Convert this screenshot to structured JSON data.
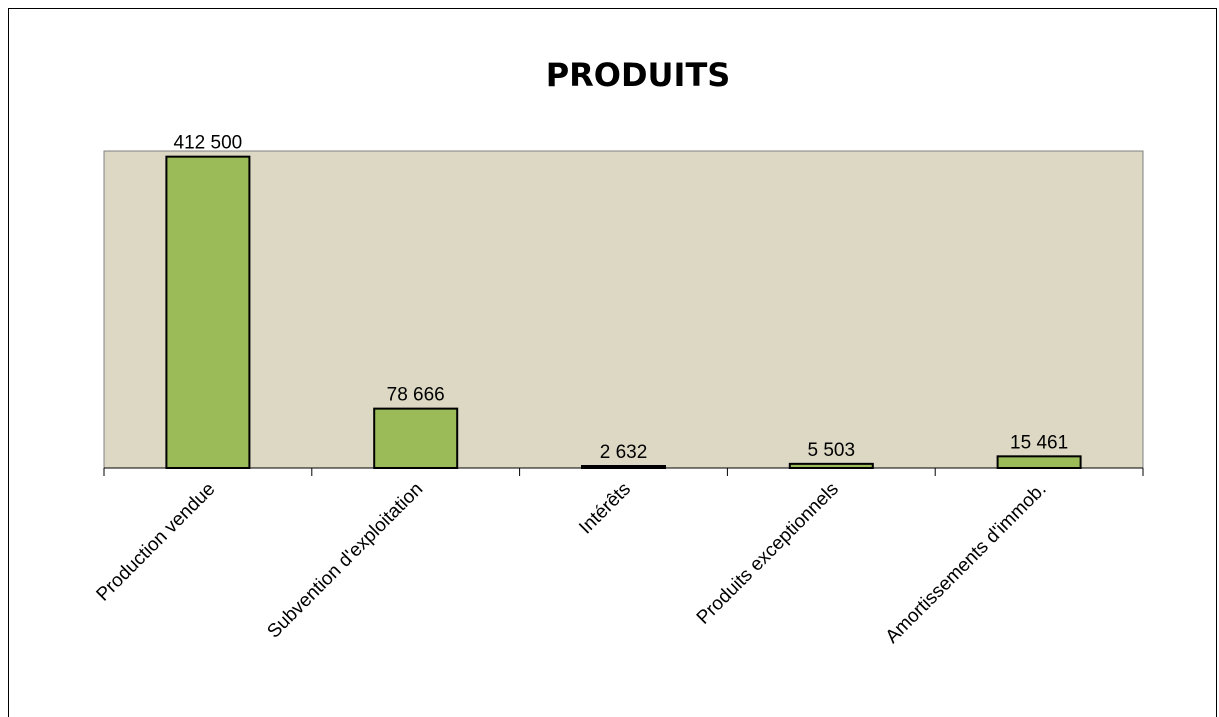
{
  "chart_data": {
    "type": "bar",
    "title": "PRODUITS",
    "xlabel": "",
    "ylabel": "",
    "categories": [
      "Production vendue",
      "Subvention d'exploitation",
      "Intérêts",
      "Produits exceptionnels",
      "Amortissements d'immob."
    ],
    "values": [
      412500,
      78666,
      2632,
      5503,
      15461
    ],
    "value_labels": [
      "412 500",
      "78 666",
      "2 632",
      "5 503",
      "15 461"
    ],
    "ylim": [
      0,
      420000
    ],
    "grid": false,
    "legend": "none",
    "colors": {
      "plot_background": "#DDD8C4",
      "bar_fill": "#9BBB59",
      "bar_stroke": "#000000"
    }
  }
}
